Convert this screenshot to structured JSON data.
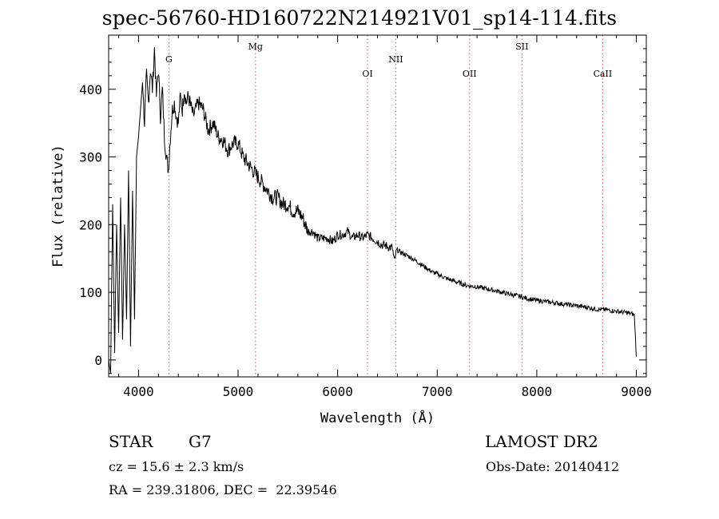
{
  "title": "spec-56760-HD160722N214921V01_sp14-114.fits",
  "info": {
    "class_label": "STAR",
    "subclass": "G7",
    "cz": "cz = 15.6 ± 2.3 km/s",
    "coords": "RA = 239.31806, DEC =  22.39546",
    "survey": "LAMOST DR2",
    "obs_date": "Obs-Date: 20140412"
  },
  "chart_data": {
    "type": "line",
    "title": "spec-56760-HD160722N214921V01_sp14-114.fits",
    "xlabel": "Wavelength (Å)",
    "ylabel": "Flux (relative)",
    "xlim": [
      3700,
      9100
    ],
    "ylim": [
      -25,
      480
    ],
    "xticks": [
      4000,
      5000,
      6000,
      7000,
      8000,
      9000
    ],
    "yticks": [
      0,
      100,
      200,
      300,
      400
    ],
    "grid": false,
    "line_color": "#000000",
    "marker_color": "#e05050",
    "lines": [
      {
        "name": "G",
        "wavelength": 4305
      },
      {
        "name": "Mg",
        "wavelength": 5175
      },
      {
        "name": "OI",
        "wavelength": 6300
      },
      {
        "name": "NII",
        "wavelength": 6584
      },
      {
        "name": "OII",
        "wavelength": 7325
      },
      {
        "name": "SII",
        "wavelength": 7851
      },
      {
        "name": "CaII",
        "wavelength": 8662
      }
    ],
    "series": [
      {
        "x": [
          3700,
          3720,
          3740,
          3760,
          3780,
          3800,
          3820,
          3840,
          3860,
          3880,
          3900,
          3920,
          3940,
          3960,
          3980,
          4000,
          4020,
          4040,
          4060,
          4080,
          4100,
          4120,
          4140,
          4160,
          4180,
          4200,
          4220,
          4240,
          4260,
          4280,
          4300,
          4320,
          4340,
          4360,
          4380,
          4400,
          4420,
          4440,
          4460,
          4480,
          4500,
          4550,
          4600,
          4650,
          4700,
          4750,
          4800,
          4850,
          4900,
          4950,
          5000,
          5050,
          5100,
          5150,
          5200,
          5250,
          5300,
          5350,
          5400,
          5450,
          5500,
          5550,
          5600,
          5650,
          5700,
          5750,
          5800,
          5850,
          5900,
          5950,
          6000,
          6050,
          6100,
          6150,
          6200,
          6250,
          6300,
          6350,
          6400,
          6450,
          6500,
          6550,
          6570,
          6590,
          6600,
          6650,
          6700,
          6750,
          6800,
          6850,
          6900,
          6950,
          7000,
          7100,
          7200,
          7300,
          7400,
          7500,
          7600,
          7700,
          7800,
          7900,
          8000,
          8100,
          8200,
          8300,
          8400,
          8500,
          8600,
          8700,
          8800,
          8900,
          8960,
          8980,
          9000
        ],
        "y": [
          0,
          -20,
          230,
          10,
          200,
          40,
          240,
          30,
          200,
          60,
          280,
          20,
          250,
          60,
          300,
          330,
          370,
          410,
          350,
          420,
          380,
          430,
          400,
          460,
          390,
          430,
          360,
          400,
          330,
          300,
          280,
          330,
          370,
          380,
          360,
          350,
          390,
          370,
          400,
          380,
          390,
          360,
          380,
          370,
          340,
          350,
          330,
          325,
          310,
          320,
          320,
          300,
          290,
          280,
          270,
          260,
          250,
          240,
          240,
          230,
          230,
          220,
          220,
          210,
          190,
          190,
          180,
          180,
          180,
          175,
          185,
          185,
          190,
          180,
          185,
          180,
          185,
          180,
          175,
          170,
          168,
          165,
          145,
          160,
          162,
          158,
          154,
          150,
          145,
          140,
          135,
          130,
          127,
          120,
          115,
          110,
          108,
          105,
          102,
          98,
          95,
          91,
          88,
          86,
          84,
          82,
          80,
          78,
          75,
          74,
          72,
          70,
          68,
          66,
          5
        ]
      }
    ]
  }
}
